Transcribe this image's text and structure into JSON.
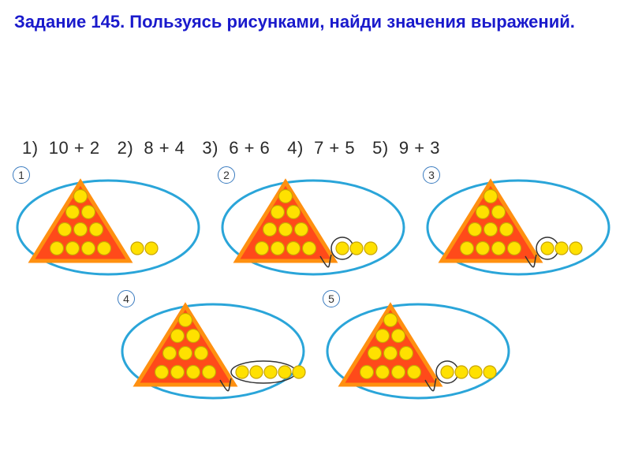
{
  "title": "Задание 145. Пользуясь рисунками, найди значения выражений.",
  "expressions": [
    {
      "n": "1)",
      "text": "10 + 2"
    },
    {
      "n": "2)",
      "text": "8 + 4"
    },
    {
      "n": "3)",
      "text": "6 + 6"
    },
    {
      "n": "4)",
      "text": "7 + 5"
    },
    {
      "n": "5)",
      "text": "9 + 3"
    }
  ],
  "style": {
    "title_color": "#1a1acc",
    "title_fontsize": 22,
    "expr_color": "#2a2a2a",
    "expr_fontsize": 22,
    "triangle_fill": "#ff4a1a",
    "triangle_stroke": "#ff9010",
    "dot_fill": "#ffe100",
    "dot_stroke": "#c8a400",
    "oval_stroke": "#2aa5d9",
    "badge_border": "#3a7bbf",
    "loop_stroke": "#333333"
  },
  "panels": [
    {
      "id": "1",
      "triangle_dots": 10,
      "outside_dots": 2,
      "in_loop": 0
    },
    {
      "id": "2",
      "triangle_dots": 10,
      "outside_dots": 3,
      "in_loop": 1
    },
    {
      "id": "3",
      "triangle_dots": 10,
      "outside_dots": 3,
      "in_loop": 1
    },
    {
      "id": "4",
      "triangle_dots": 10,
      "outside_dots": 5,
      "in_loop": 4
    },
    {
      "id": "5",
      "triangle_dots": 10,
      "outside_dots": 4,
      "in_loop": 1
    }
  ],
  "dot_rows": [
    [
      1
    ],
    [
      2
    ],
    [
      3
    ],
    [
      4
    ]
  ]
}
